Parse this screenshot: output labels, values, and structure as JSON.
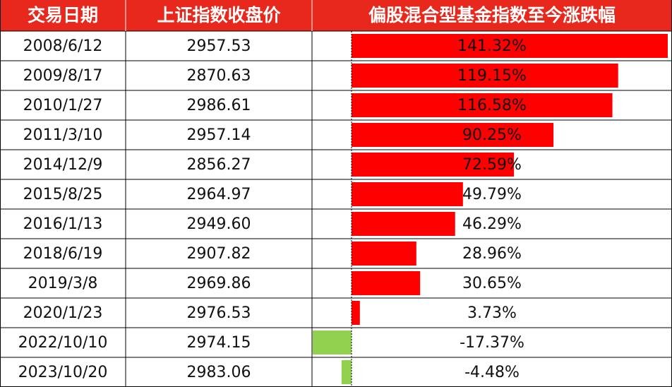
{
  "table": {
    "header": [
      "交易日期",
      "上证指数收盘价",
      "偏股混合型基金指数至今涨跌幅"
    ],
    "rows": [
      {
        "date": "2008/6/12",
        "close": "2957.53",
        "change": 141.32,
        "change_label": "141.32%"
      },
      {
        "date": "2009/8/17",
        "close": "2870.63",
        "change": 119.15,
        "change_label": "119.15%"
      },
      {
        "date": "2010/1/27",
        "close": "2986.61",
        "change": 116.58,
        "change_label": "116.58%"
      },
      {
        "date": "2011/3/10",
        "close": "2957.14",
        "change": 90.25,
        "change_label": "90.25%"
      },
      {
        "date": "2014/12/9",
        "close": "2856.27",
        "change": 72.59,
        "change_label": "72.59%"
      },
      {
        "date": "2015/8/25",
        "close": "2964.97",
        "change": 49.79,
        "change_label": "49.79%"
      },
      {
        "date": "2016/1/13",
        "close": "2949.60",
        "change": 46.29,
        "change_label": "46.29%"
      },
      {
        "date": "2018/6/19",
        "close": "2907.82",
        "change": 28.96,
        "change_label": "28.96%"
      },
      {
        "date": "2019/3/8",
        "close": "2969.86",
        "change": 30.65,
        "change_label": "30.65%"
      },
      {
        "date": "2020/1/23",
        "close": "2976.53",
        "change": 3.73,
        "change_label": "3.73%"
      },
      {
        "date": "2022/10/10",
        "close": "2974.15",
        "change": -17.37,
        "change_label": "-17.37%"
      },
      {
        "date": "2023/10/20",
        "close": "2983.06",
        "change": -4.48,
        "change_label": "-4.48%"
      }
    ]
  }
}
